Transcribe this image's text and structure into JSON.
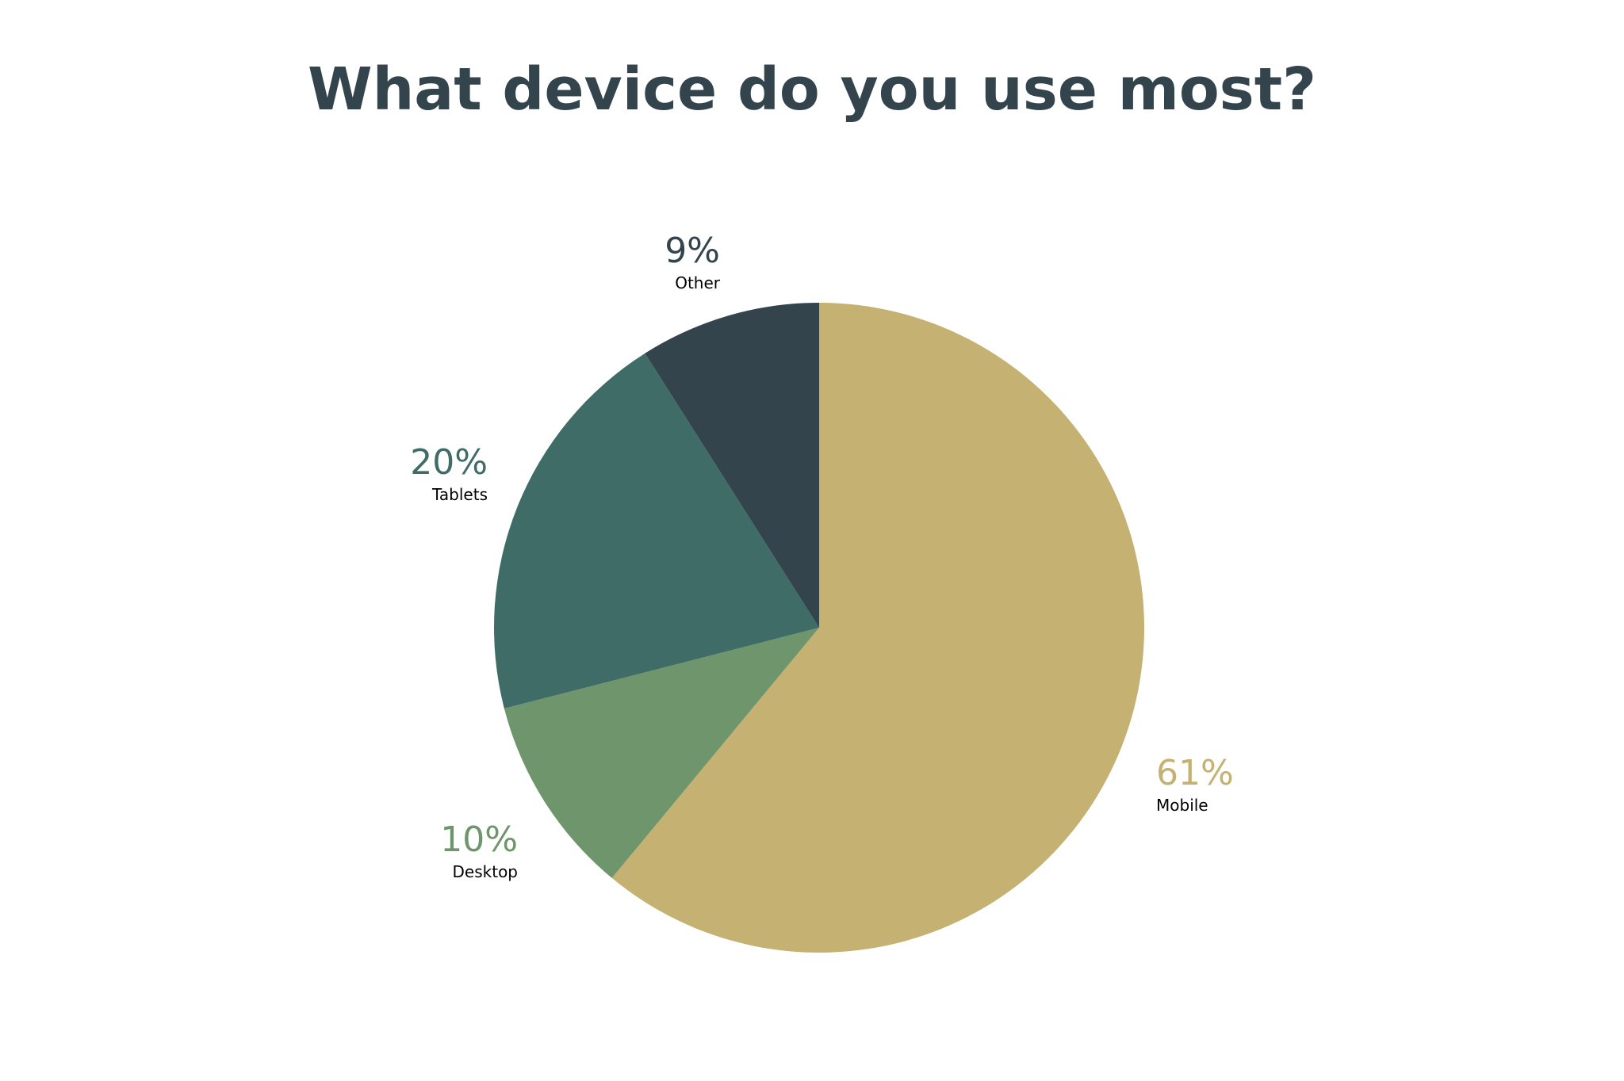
{
  "chart_data": {
    "type": "pie",
    "title": "What device do you use most?",
    "start_angle_deg": 0,
    "direction": "clockwise",
    "slices": [
      {
        "label": "Mobile",
        "percent_text": "61%",
        "value": 61,
        "color": "#c5b172"
      },
      {
        "label": "Desktop",
        "percent_text": "10%",
        "value": 10,
        "color": "#6e956b"
      },
      {
        "label": "Tablets",
        "percent_text": "20%",
        "value": 20,
        "color": "#3f6c67"
      },
      {
        "label": "Other",
        "percent_text": "9%",
        "value": 9,
        "color": "#33444c"
      }
    ]
  },
  "colors": {
    "title": "#33444c",
    "background": "#ffffff",
    "label_text": "#000000"
  }
}
